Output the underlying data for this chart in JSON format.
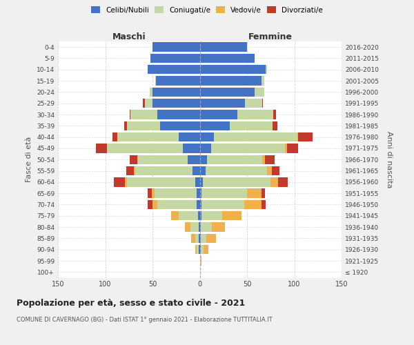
{
  "age_groups": [
    "100+",
    "95-99",
    "90-94",
    "85-89",
    "80-84",
    "75-79",
    "70-74",
    "65-69",
    "60-64",
    "55-59",
    "50-54",
    "45-49",
    "40-44",
    "35-39",
    "30-34",
    "25-29",
    "20-24",
    "15-19",
    "10-14",
    "5-9",
    "0-4"
  ],
  "birth_years": [
    "≤ 1920",
    "1921-1925",
    "1926-1930",
    "1931-1935",
    "1936-1940",
    "1941-1945",
    "1946-1950",
    "1951-1955",
    "1956-1960",
    "1961-1965",
    "1966-1970",
    "1971-1975",
    "1976-1980",
    "1981-1985",
    "1986-1990",
    "1991-1995",
    "1996-2000",
    "2001-2005",
    "2006-2010",
    "2011-2015",
    "2016-2020"
  ],
  "colors": {
    "celibe": "#4472c4",
    "coniugato": "#c5d8a4",
    "vedovo": "#f0b050",
    "divorziato": "#c0392b"
  },
  "maschi": {
    "celibe": [
      0,
      0,
      1,
      1,
      1,
      2,
      3,
      3,
      5,
      8,
      13,
      18,
      22,
      42,
      45,
      50,
      50,
      46,
      55,
      52,
      50
    ],
    "coniugato": [
      0,
      0,
      2,
      4,
      9,
      20,
      42,
      45,
      72,
      60,
      52,
      80,
      65,
      35,
      28,
      8,
      3,
      1,
      0,
      0,
      0
    ],
    "vedovo": [
      0,
      0,
      2,
      4,
      6,
      8,
      5,
      3,
      2,
      2,
      1,
      0,
      0,
      0,
      0,
      0,
      0,
      0,
      0,
      0,
      0
    ],
    "divorziato": [
      0,
      0,
      0,
      0,
      0,
      0,
      5,
      4,
      12,
      8,
      8,
      12,
      5,
      3,
      1,
      2,
      0,
      0,
      0,
      0,
      0
    ]
  },
  "femmine": {
    "nubile": [
      0,
      0,
      1,
      1,
      1,
      2,
      2,
      2,
      3,
      6,
      8,
      12,
      15,
      32,
      40,
      48,
      58,
      65,
      70,
      58,
      50
    ],
    "coniugata": [
      0,
      1,
      3,
      6,
      12,
      22,
      45,
      48,
      72,
      65,
      58,
      78,
      88,
      45,
      38,
      18,
      10,
      3,
      1,
      0,
      0
    ],
    "vedova": [
      0,
      1,
      5,
      10,
      14,
      20,
      18,
      15,
      8,
      5,
      3,
      2,
      1,
      0,
      0,
      0,
      0,
      0,
      0,
      0,
      0
    ],
    "divorziata": [
      0,
      0,
      0,
      0,
      0,
      0,
      5,
      4,
      10,
      8,
      10,
      12,
      15,
      5,
      3,
      1,
      0,
      0,
      0,
      0,
      0
    ]
  },
  "xlim": 150,
  "title": "Popolazione per età, sesso e stato civile - 2021",
  "subtitle": "COMUNE DI CAVERNAGO (BG) - Dati ISTAT 1° gennaio 2021 - Elaborazione TUTTITALIA.IT",
  "ylabel_left": "Fasce di età",
  "ylabel_right": "Anni di nascita",
  "xlabel_maschi": "Maschi",
  "xlabel_femmine": "Femmine",
  "bg_color": "#f0f0f0",
  "plot_bg": "#ffffff",
  "legend_labels": [
    "Celibi/Nubili",
    "Coniugati/e",
    "Vedovi/e",
    "Divorziati/e"
  ]
}
